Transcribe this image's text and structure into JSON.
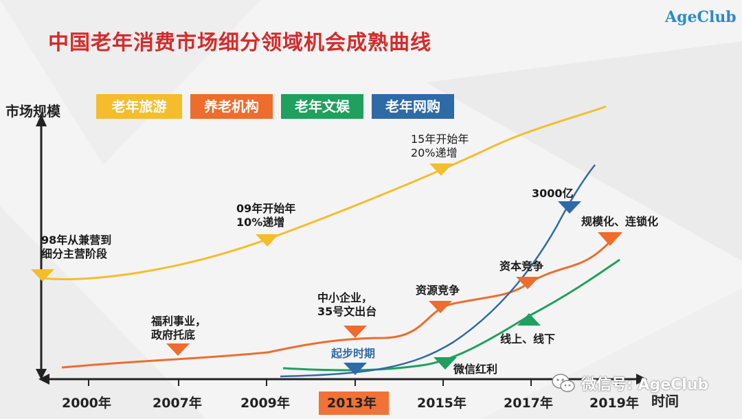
{
  "title": "中国老年消费市场细分领域机会成熟曲线",
  "logo": "AgeClub",
  "y_axis_label": "市场规模",
  "x_axis_label": "时间",
  "legend": [
    {
      "label": "老年旅游",
      "color": "#f5bd2b"
    },
    {
      "label": "养老机构",
      "color": "#ee6c2c"
    },
    {
      "label": "老年文娱",
      "color": "#1fa05e"
    },
    {
      "label": "老年网购",
      "color": "#2e6aa6"
    }
  ],
  "years": [
    "2000年",
    "2007年",
    "2009年",
    "2013年",
    "2015年",
    "2017年",
    "2019年"
  ],
  "highlight_year": "2013年",
  "annotations": {
    "tourism_1": [
      "98年从兼营到",
      "细分主营阶段"
    ],
    "tourism_2": [
      "09年开始年",
      "10%递增"
    ],
    "tourism_3": [
      "15年开始年",
      "20%递增"
    ],
    "elder_1": [
      "福利事业，",
      "政府托底"
    ],
    "elder_2": [
      "中小企业，",
      "35号文出台"
    ],
    "elder_3": [
      "资源竞争"
    ],
    "elder_4": [
      "资本竞争"
    ],
    "elder_5": [
      "规模化、连锁化"
    ],
    "ent_1": [
      "微信红利"
    ],
    "ent_2": [
      "线上、线下"
    ],
    "shop_1": [
      "起步时期"
    ],
    "shop_2": [
      "3000亿"
    ]
  },
  "watermark": "微信号: AgeClub"
}
